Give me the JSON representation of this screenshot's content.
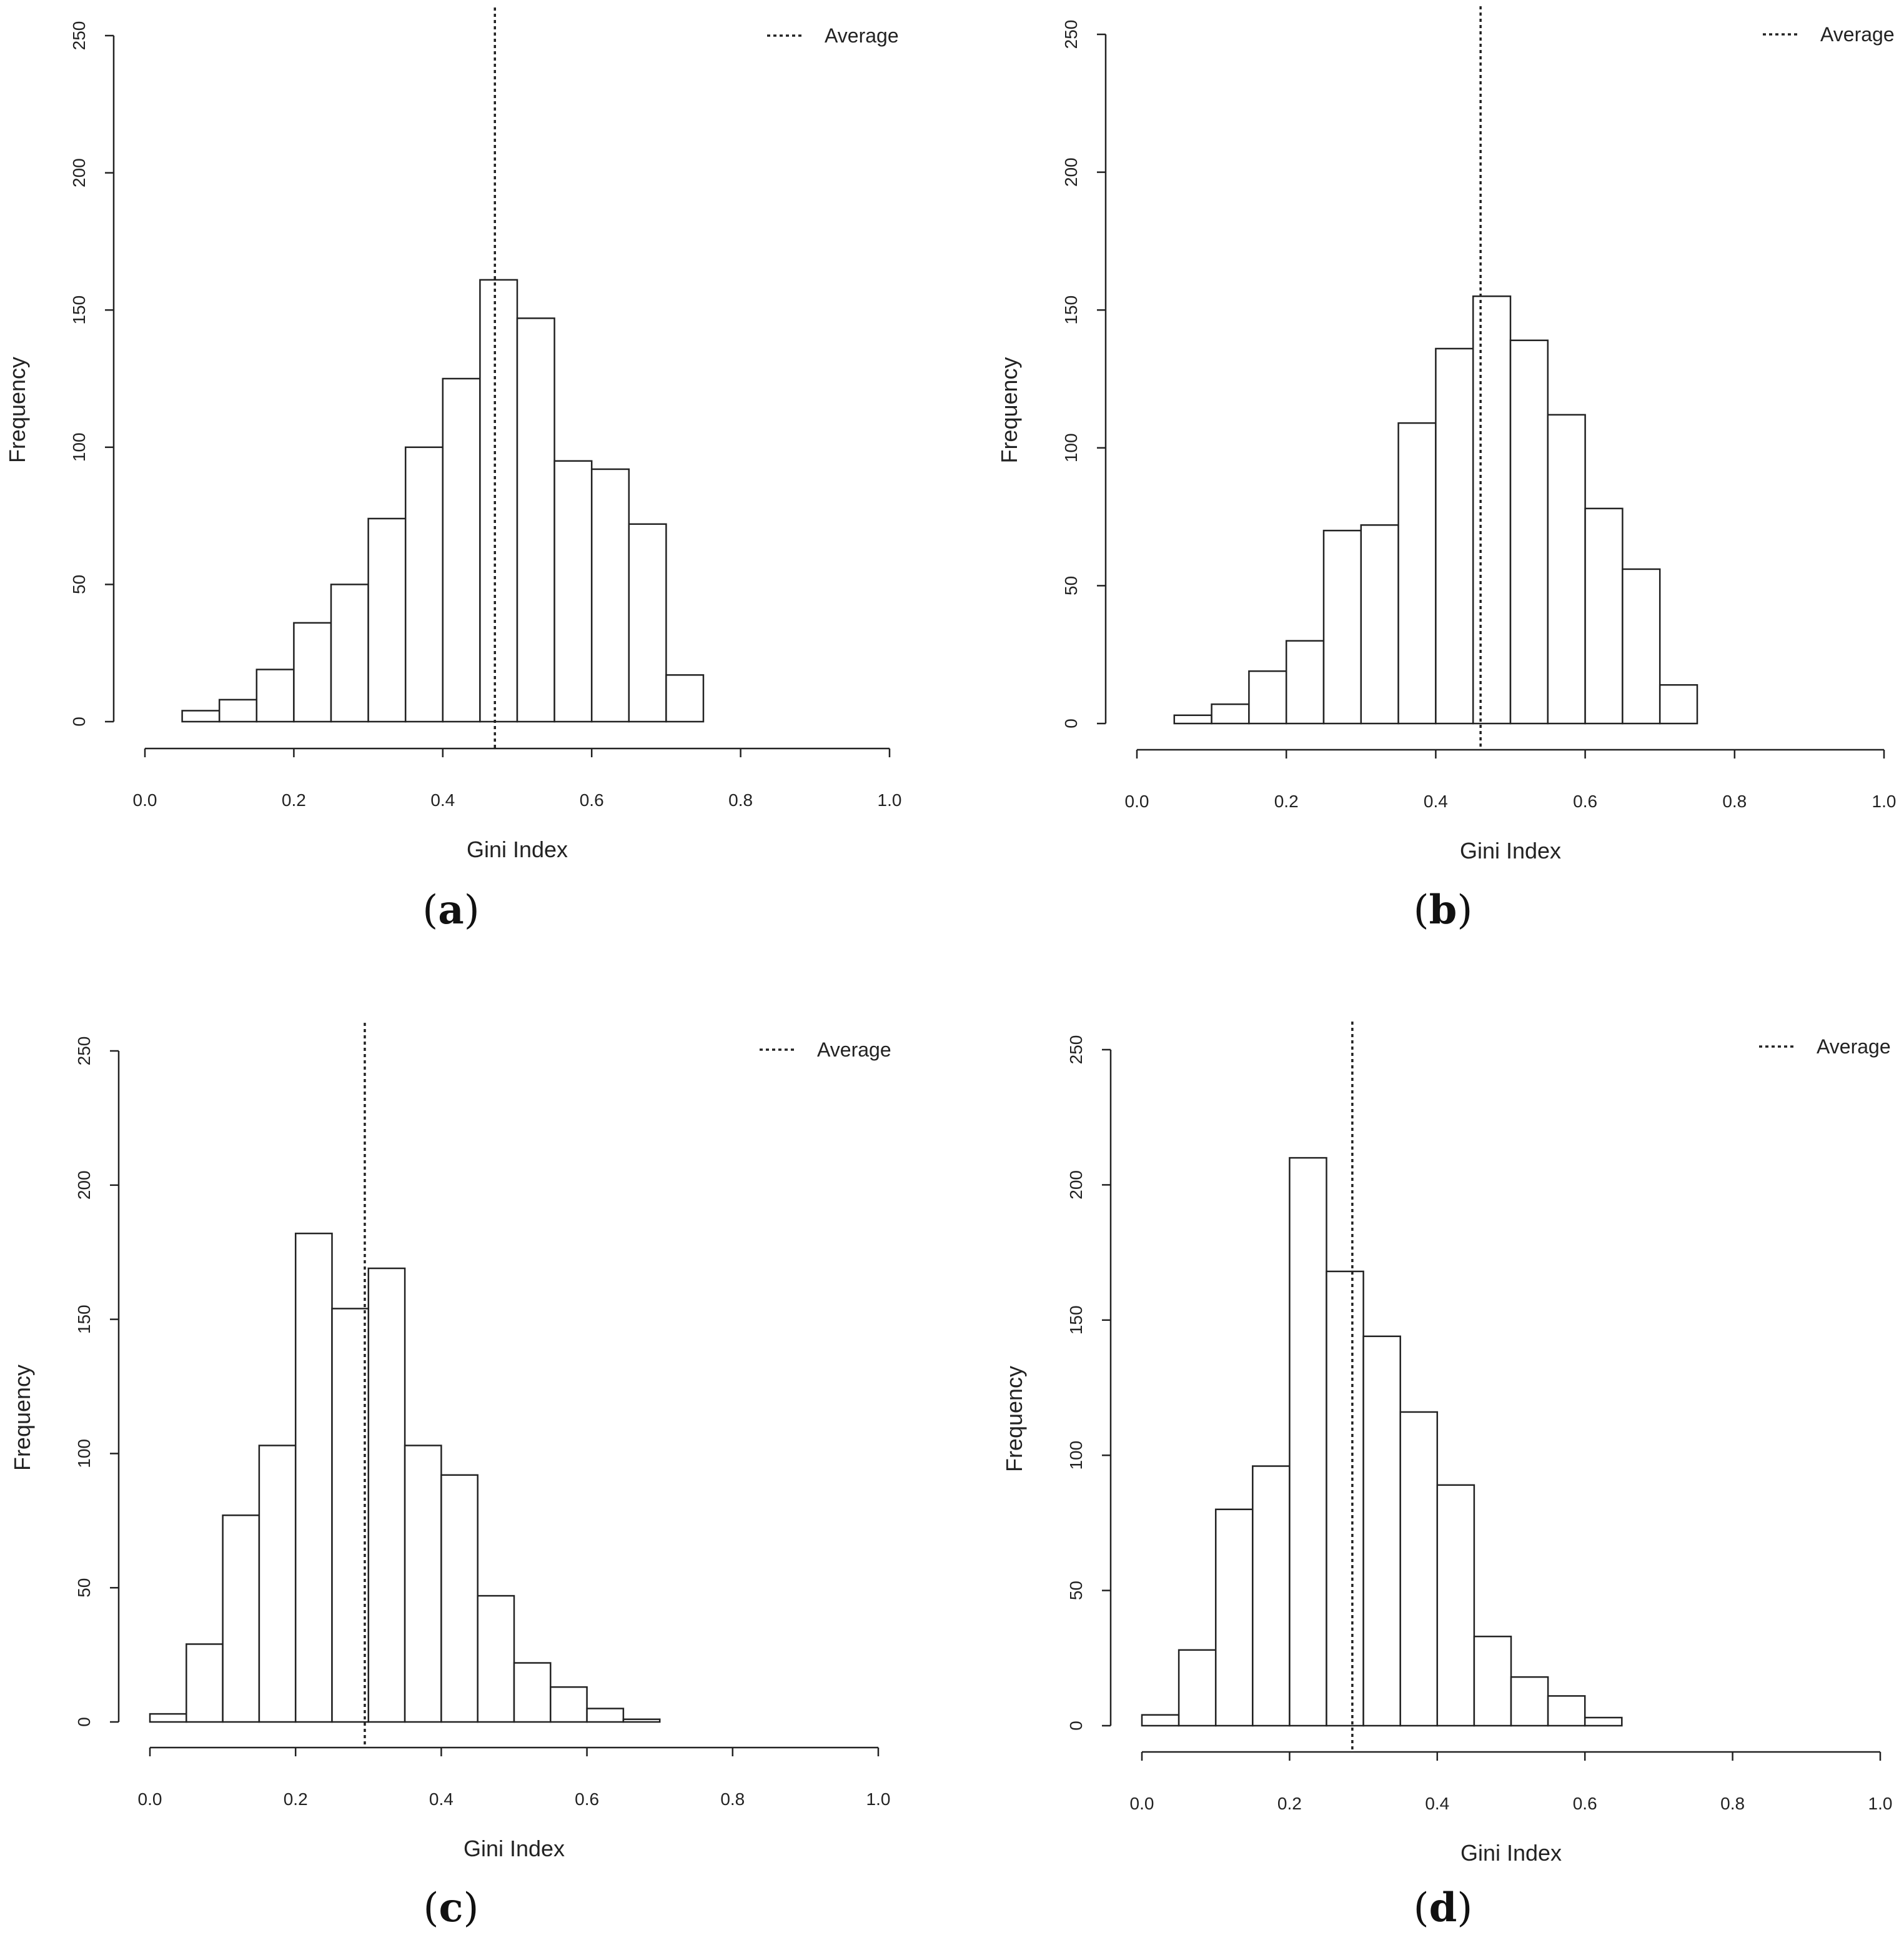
{
  "chart_data": [
    {
      "type": "bar",
      "panel": "a",
      "panel_label_open": "(",
      "panel_label_letter": "a",
      "panel_label_close": ")",
      "xlabel": "Gini Index",
      "ylabel": "Frequency",
      "xlim": [
        0,
        1
      ],
      "ylim": [
        0,
        250
      ],
      "xticks": [
        "0.0",
        "0.2",
        "0.4",
        "0.6",
        "0.8",
        "1.0"
      ],
      "yticks": [
        "0",
        "50",
        "100",
        "150",
        "200",
        "250"
      ],
      "bin_width": 0.05,
      "values": [
        0,
        4,
        8,
        19,
        36,
        50,
        74,
        100,
        125,
        161,
        147,
        95,
        92,
        72,
        17,
        0,
        0,
        0,
        0,
        0
      ],
      "average": 0.47,
      "legend_label": "Average",
      "legend_position": "top-right"
    },
    {
      "type": "bar",
      "panel": "b",
      "panel_label_open": "(",
      "panel_label_letter": "b",
      "panel_label_close": ")",
      "xlabel": "Gini Index",
      "ylabel": "Frequency",
      "xlim": [
        0,
        1
      ],
      "ylim": [
        0,
        250
      ],
      "xticks": [
        "0.0",
        "0.2",
        "0.4",
        "0.6",
        "0.8",
        "1.0"
      ],
      "yticks": [
        "0",
        "50",
        "100",
        "150",
        "200",
        "250"
      ],
      "bin_width": 0.05,
      "values": [
        0,
        3,
        7,
        19,
        30,
        70,
        72,
        109,
        136,
        155,
        139,
        112,
        78,
        56,
        14,
        0,
        0,
        0,
        0,
        0
      ],
      "average": 0.46,
      "legend_label": "Average",
      "legend_position": "top-right"
    },
    {
      "type": "bar",
      "panel": "c",
      "panel_label_open": "(",
      "panel_label_letter": "c",
      "panel_label_close": ")",
      "xlabel": "Gini Index",
      "ylabel": "Frequency",
      "xlim": [
        0,
        1
      ],
      "ylim": [
        0,
        250
      ],
      "xticks": [
        "0.0",
        "0.2",
        "0.4",
        "0.6",
        "0.8",
        "1.0"
      ],
      "yticks": [
        "0",
        "50",
        "100",
        "150",
        "200",
        "250"
      ],
      "bin_width": 0.05,
      "values": [
        3,
        29,
        77,
        103,
        182,
        154,
        169,
        103,
        92,
        47,
        22,
        13,
        5,
        1,
        0,
        0,
        0,
        0,
        0,
        0
      ],
      "average": 0.295,
      "legend_label": "Average",
      "legend_position": "top-right"
    },
    {
      "type": "bar",
      "panel": "d",
      "panel_label_open": "(",
      "panel_label_letter": "d",
      "panel_label_close": ")",
      "xlabel": "Gini Index",
      "ylabel": "Frequency",
      "xlim": [
        0,
        1
      ],
      "ylim": [
        0,
        250
      ],
      "xticks": [
        "0.0",
        "0.2",
        "0.4",
        "0.6",
        "0.8",
        "1.0"
      ],
      "yticks": [
        "0",
        "50",
        "100",
        "150",
        "200",
        "250"
      ],
      "bin_width": 0.05,
      "values": [
        4,
        28,
        80,
        96,
        210,
        168,
        144,
        116,
        89,
        33,
        18,
        11,
        3,
        0,
        0,
        0,
        0,
        0,
        0,
        0
      ],
      "average": 0.285,
      "legend_label": "Average",
      "legend_position": "top-right"
    }
  ]
}
